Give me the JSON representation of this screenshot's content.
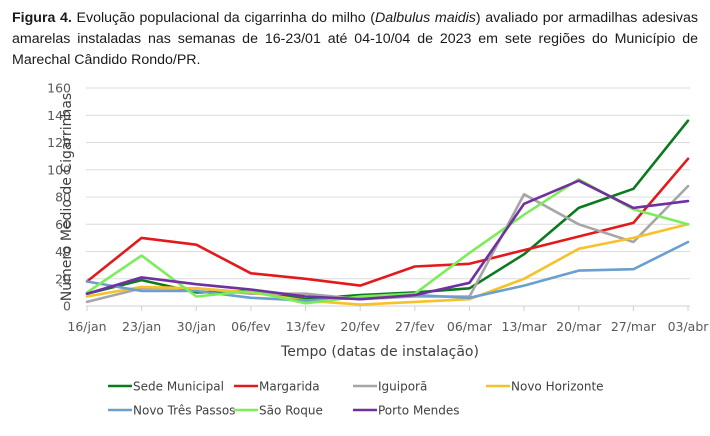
{
  "caption": {
    "label": "Figura 4.",
    "text_before": " Evolução populacional da cigarrinha do milho (",
    "species": "Dalbulus maidis",
    "text_after": ") avaliado por armadilhas adesivas amarelas instaladas nas semanas de 16-23/01 até 04-10/04 de 2023 em sete regiões do Município de Marechal Cândido Rondo/PR."
  },
  "chart_data": {
    "type": "line",
    "title": "",
    "xlabel": "Tempo (datas de instalação)",
    "ylabel": "Número Médio de Cigarrinhas",
    "ylim": [
      0,
      160
    ],
    "yticks": [
      0,
      20,
      40,
      60,
      80,
      100,
      120,
      140,
      160
    ],
    "grid": true,
    "legend_position": "bottom",
    "categories": [
      "16/jan",
      "23/jan",
      "30/jan",
      "06/fev",
      "13/fev",
      "20/fev",
      "27/fev",
      "06/mar",
      "13/mar",
      "20/mar",
      "27/mar",
      "03/abr"
    ],
    "series": [
      {
        "name": "Sede Municipal",
        "color": "#0b7a1e",
        "values": [
          9,
          19,
          10,
          11,
          5,
          8,
          10,
          13,
          38,
          72,
          86,
          136
        ]
      },
      {
        "name": "Margarida",
        "color": "#e31a1c",
        "values": [
          18,
          50,
          45,
          24,
          20,
          15,
          29,
          31,
          41,
          51,
          61,
          108
        ]
      },
      {
        "name": "Iguiporã",
        "color": "#a6a6a6",
        "values": [
          3,
          13,
          13,
          9,
          9,
          5,
          7,
          7,
          82,
          60,
          47,
          88
        ]
      },
      {
        "name": "Novo Horizonte",
        "color": "#f5c22b",
        "values": [
          7,
          14,
          13,
          10,
          4,
          1,
          3,
          5,
          20,
          42,
          50,
          60
        ]
      },
      {
        "name": "Novo Três Passos",
        "color": "#6a9fcf",
        "values": [
          18,
          11,
          11,
          6,
          4,
          6,
          8,
          6,
          15,
          26,
          27,
          47
        ]
      },
      {
        "name": "São Roque",
        "color": "#7ced5a",
        "values": [
          10,
          37,
          7,
          11,
          2,
          7,
          9,
          39,
          67,
          93,
          71,
          60
        ]
      },
      {
        "name": "Porto Mendes",
        "color": "#7030a0",
        "values": [
          9,
          21,
          16,
          12,
          7,
          5,
          8,
          17,
          75,
          92,
          72,
          77
        ]
      }
    ]
  }
}
